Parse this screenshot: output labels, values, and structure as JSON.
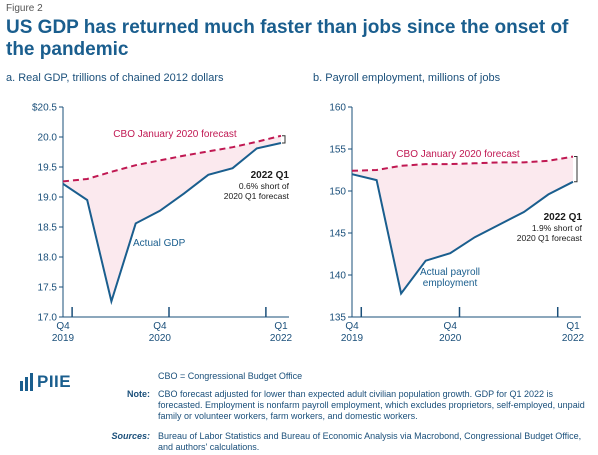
{
  "figure_label": "Figure 2",
  "title": "US GDP has returned much faster than jobs since the onset of the pandemic",
  "colors": {
    "actual": "#1a5e8e",
    "forecast": "#c01852",
    "shade": "#fbe9ee",
    "axis": "#1a4f7a"
  },
  "chart_data": [
    {
      "type": "line",
      "title": "a. Real GDP, trillions of chained 2012 dollars",
      "ylim": [
        17.0,
        20.5
      ],
      "ytick_labels": [
        "$20.5",
        "20.0",
        "19.5",
        "19.0",
        "18.5",
        "18.0",
        "17.5",
        "17.0"
      ],
      "x_tick_labels": [
        {
          "q": "Q4",
          "y": "2019"
        },
        {
          "q": "Q4",
          "y": "2020"
        },
        {
          "q": "Q1",
          "y": "2022"
        }
      ],
      "series": [
        {
          "kind": "actual",
          "x": [
            "2019Q4",
            "2020Q1",
            "2020Q2",
            "2020Q3",
            "2020Q4",
            "2021Q1",
            "2021Q2",
            "2021Q3",
            "2021Q4",
            "2022Q1"
          ],
          "values": [
            19.22,
            18.95,
            17.26,
            18.56,
            18.77,
            19.06,
            19.37,
            19.48,
            19.81,
            19.9
          ]
        },
        {
          "kind": "forecast",
          "x": [
            "2019Q4",
            "2020Q1",
            "2020Q2",
            "2020Q3",
            "2020Q4",
            "2021Q1",
            "2021Q2",
            "2021Q3",
            "2021Q4",
            "2022Q1"
          ],
          "values": [
            19.26,
            19.3,
            19.42,
            19.53,
            19.61,
            19.69,
            19.76,
            19.83,
            19.92,
            20.02
          ]
        }
      ],
      "annotations": {
        "forecast_label": "CBO January 2020 forecast",
        "actual_label": "Actual GDP",
        "end_label_bold": "2022 Q1",
        "end_label_lines": [
          "0.6% short of",
          "2020 Q1 forecast"
        ]
      }
    },
    {
      "type": "line",
      "title": "b. Payroll employment, millions of jobs",
      "ylim": [
        135,
        160
      ],
      "ytick_labels": [
        "160",
        "155",
        "150",
        "145",
        "140",
        "135"
      ],
      "x_tick_labels": [
        {
          "q": "Q4",
          "y": "2019"
        },
        {
          "q": "Q4",
          "y": "2020"
        },
        {
          "q": "Q1",
          "y": "2022"
        }
      ],
      "series": [
        {
          "kind": "actual",
          "x": [
            "2019Q4",
            "2020Q1",
            "2020Q2",
            "2020Q3",
            "2020Q4",
            "2021Q1",
            "2021Q2",
            "2021Q3",
            "2021Q4",
            "2022Q1"
          ],
          "values": [
            152.0,
            151.3,
            137.8,
            141.7,
            142.6,
            144.5,
            146.0,
            147.5,
            149.6,
            151.1
          ]
        },
        {
          "kind": "forecast",
          "x": [
            "2019Q4",
            "2020Q1",
            "2020Q2",
            "2020Q3",
            "2020Q4",
            "2021Q1",
            "2021Q2",
            "2021Q3",
            "2021Q4",
            "2022Q1"
          ],
          "values": [
            152.4,
            152.5,
            153.0,
            153.2,
            153.2,
            153.3,
            153.4,
            153.4,
            153.6,
            154.1
          ]
        }
      ],
      "annotations": {
        "forecast_label": "CBO January 2020 forecast",
        "actual_label_lines": [
          "Actual payroll",
          "employment"
        ],
        "end_label_bold": "2022 Q1",
        "end_label_lines": [
          "1.9% short of",
          "2020 Q1 forecast"
        ]
      }
    }
  ],
  "footer": {
    "logo": "PIIE",
    "cbo_def": "CBO = Congressional Budget Office",
    "note_key": "Note:",
    "note_text": "CBO forecast adjusted for lower than expected adult civilian population growth. GDP for Q1 2022 is forecasted. Employment is nonfarm payroll employment, which excludes proprietors, self-employed, unpaid family or volunteer workers, farm workers, and domestic workers.",
    "sources_key": "Sources:",
    "sources_text": "Bureau of Labor Statistics and Bureau of Economic Analysis via Macrobond, Congressional Budget Office, and authors' calculations."
  }
}
